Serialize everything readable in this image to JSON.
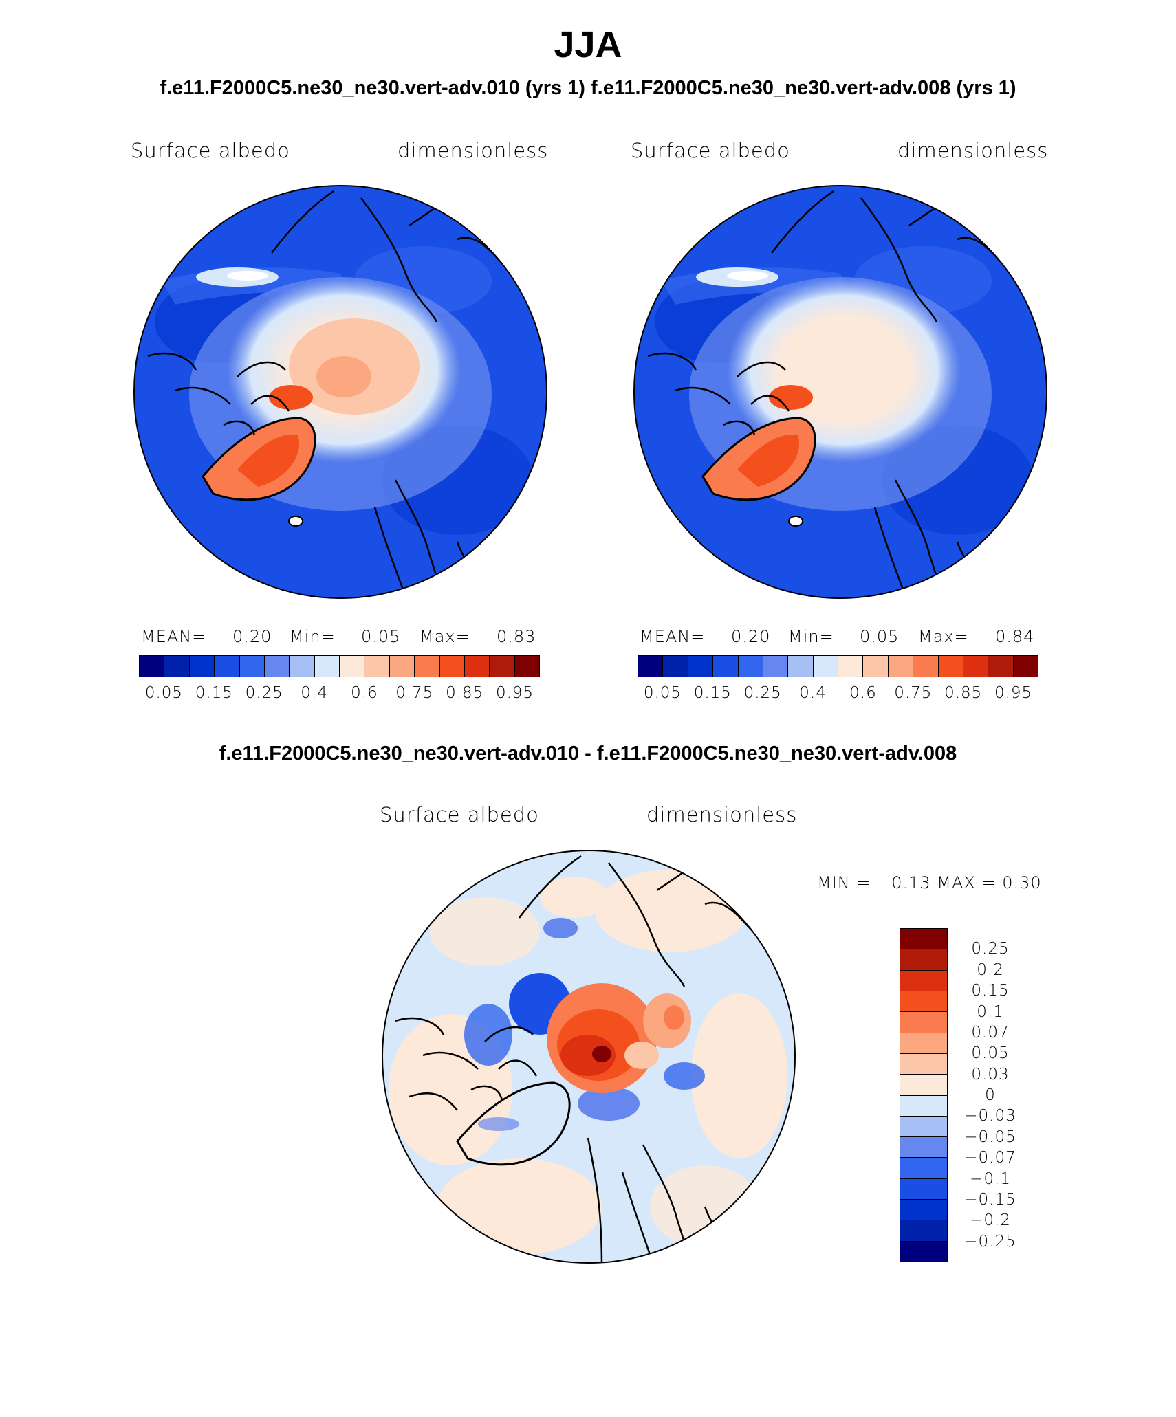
{
  "title": "JJA",
  "header_subtitle": "f.e11.F2000C5.ne30_ne30.vert-adv.010 (yrs 1)  f.e11.F2000C5.ne30_ne30.vert-adv.008 (yrs 1)",
  "diff_subtitle": "f.e11.F2000C5.ne30_ne30.vert-adv.010 - f.e11.F2000C5.ne30_ne30.vert-adv.008",
  "panels": [
    {
      "variable": "Surface albedo",
      "units": "dimensionless",
      "mean_label": "MEAN=",
      "mean": "0.20",
      "min_label": "Min=",
      "min": "0.05",
      "max_label": "Max=",
      "max": "0.83"
    },
    {
      "variable": "Surface albedo",
      "units": "dimensionless",
      "mean_label": "MEAN=",
      "mean": "0.20",
      "min_label": "Min=",
      "min": "0.05",
      "max_label": "Max=",
      "max": "0.84"
    }
  ],
  "diff_panel": {
    "variable": "Surface albedo",
    "units": "dimensionless",
    "minmax": "MIN =   −0.13 MAX =     0.30"
  },
  "field_colorbar": {
    "colors": [
      "#00007f",
      "#0022aa",
      "#0033cc",
      "#1a4fe6",
      "#3366ee",
      "#6688ee",
      "#a6c0f5",
      "#d8e8fb",
      "#fde9da",
      "#fcc6a8",
      "#fba880",
      "#fa7c4e",
      "#f4501e",
      "#dc3010",
      "#b01a08",
      "#7f0000"
    ],
    "labels": [
      "0.05",
      "0.15",
      "0.25",
      "0.4",
      "0.6",
      "0.75",
      "0.85",
      "0.95"
    ]
  },
  "diff_colorbar": {
    "colors": [
      "#7f0000",
      "#b01a08",
      "#dc3010",
      "#f4501e",
      "#fa7c4e",
      "#fba880",
      "#fcc6a8",
      "#fde9da",
      "#d8e8fb",
      "#a6c0f5",
      "#6688ee",
      "#3366ee",
      "#1a4fe6",
      "#0033cc",
      "#0022aa",
      "#00007f"
    ],
    "labels": [
      "0.25",
      "0.2",
      "0.15",
      "0.1",
      "0.07",
      "0.05",
      "0.03",
      "0",
      "−0.03",
      "−0.05",
      "−0.07",
      "−0.1",
      "−0.15",
      "−0.2",
      "−0.25"
    ]
  }
}
